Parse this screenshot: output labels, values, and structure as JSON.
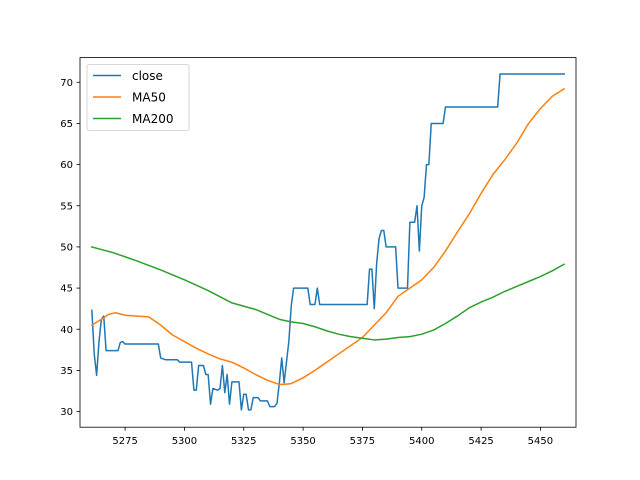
{
  "chart_data": {
    "type": "line",
    "title": "",
    "xlabel": "",
    "ylabel": "",
    "xlim": [
      5256,
      5465
    ],
    "ylim": [
      28.1,
      73.0
    ],
    "xticks": [
      5275,
      5300,
      5325,
      5350,
      5375,
      5400,
      5425,
      5450
    ],
    "yticks": [
      30,
      35,
      40,
      45,
      50,
      55,
      60,
      65,
      70
    ],
    "grid": false,
    "legend_position": "top-left",
    "series": [
      {
        "name": "close",
        "color": "#1f77b4",
        "points": [
          [
            5261,
            42.3
          ],
          [
            5262,
            37.0
          ],
          [
            5263,
            34.4
          ],
          [
            5264,
            38.5
          ],
          [
            5265,
            41.2
          ],
          [
            5266,
            41.6
          ],
          [
            5267,
            37.4
          ],
          [
            5270,
            37.4
          ],
          [
            5272,
            37.4
          ],
          [
            5273,
            38.4
          ],
          [
            5274,
            38.5
          ],
          [
            5275,
            38.2
          ],
          [
            5280,
            38.2
          ],
          [
            5285,
            38.2
          ],
          [
            5289,
            38.2
          ],
          [
            5290,
            36.5
          ],
          [
            5292,
            36.3
          ],
          [
            5297,
            36.3
          ],
          [
            5298,
            36.0
          ],
          [
            5301,
            36.0
          ],
          [
            5303,
            36.0
          ],
          [
            5304,
            32.6
          ],
          [
            5305,
            32.6
          ],
          [
            5306,
            35.6
          ],
          [
            5308,
            35.6
          ],
          [
            5309,
            34.5
          ],
          [
            5310,
            34.5
          ],
          [
            5311,
            30.9
          ],
          [
            5312,
            32.8
          ],
          [
            5314,
            32.6
          ],
          [
            5315,
            32.8
          ],
          [
            5316,
            35.6
          ],
          [
            5317,
            32.3
          ],
          [
            5318,
            34.5
          ],
          [
            5319,
            30.9
          ],
          [
            5320,
            33.6
          ],
          [
            5323,
            33.6
          ],
          [
            5324,
            30.2
          ],
          [
            5325,
            32.1
          ],
          [
            5326,
            32.1
          ],
          [
            5327,
            30.2
          ],
          [
            5328,
            30.2
          ],
          [
            5329,
            31.7
          ],
          [
            5331,
            31.7
          ],
          [
            5332,
            31.3
          ],
          [
            5335,
            31.3
          ],
          [
            5336,
            30.6
          ],
          [
            5338,
            30.6
          ],
          [
            5339,
            31.0
          ],
          [
            5340,
            33.5
          ],
          [
            5341,
            36.5
          ],
          [
            5342,
            33.5
          ],
          [
            5344,
            38.5
          ],
          [
            5345,
            42.8
          ],
          [
            5346,
            45.0
          ],
          [
            5350,
            45.0
          ],
          [
            5352,
            45.0
          ],
          [
            5353,
            43.0
          ],
          [
            5355,
            43.0
          ],
          [
            5356,
            45.0
          ],
          [
            5357,
            43.0
          ],
          [
            5360,
            43.0
          ],
          [
            5365,
            43.0
          ],
          [
            5370,
            43.0
          ],
          [
            5375,
            43.0
          ],
          [
            5377,
            43.0
          ],
          [
            5378,
            47.3
          ],
          [
            5379,
            47.3
          ],
          [
            5380,
            42.5
          ],
          [
            5381,
            48.0
          ],
          [
            5382,
            51.0
          ],
          [
            5383,
            52.0
          ],
          [
            5384,
            52.0
          ],
          [
            5385,
            50.0
          ],
          [
            5389,
            50.0
          ],
          [
            5390,
            45.0
          ],
          [
            5394,
            45.0
          ],
          [
            5395,
            53.0
          ],
          [
            5397,
            53.0
          ],
          [
            5398,
            55.0
          ],
          [
            5399,
            49.5
          ],
          [
            5400,
            55.0
          ],
          [
            5401,
            56.0
          ],
          [
            5402,
            60.0
          ],
          [
            5403,
            60.0
          ],
          [
            5404,
            65.0
          ],
          [
            5409,
            65.0
          ],
          [
            5410,
            67.0
          ],
          [
            5420,
            67.0
          ],
          [
            5431,
            67.0
          ],
          [
            5432,
            67.0
          ],
          [
            5433,
            71.0
          ],
          [
            5445,
            71.0
          ],
          [
            5460,
            71.0
          ]
        ]
      },
      {
        "name": "MA50",
        "color": "#ff7f0e",
        "points": [
          [
            5261,
            40.5
          ],
          [
            5265,
            41.2
          ],
          [
            5268,
            41.8
          ],
          [
            5271,
            42.0
          ],
          [
            5275,
            41.7
          ],
          [
            5280,
            41.6
          ],
          [
            5285,
            41.5
          ],
          [
            5290,
            40.5
          ],
          [
            5295,
            39.3
          ],
          [
            5300,
            38.5
          ],
          [
            5305,
            37.7
          ],
          [
            5310,
            37.0
          ],
          [
            5315,
            36.4
          ],
          [
            5320,
            36.0
          ],
          [
            5325,
            35.3
          ],
          [
            5330,
            34.5
          ],
          [
            5335,
            33.8
          ],
          [
            5340,
            33.3
          ],
          [
            5342,
            33.3
          ],
          [
            5345,
            33.4
          ],
          [
            5350,
            34.1
          ],
          [
            5355,
            35.0
          ],
          [
            5360,
            36.0
          ],
          [
            5365,
            37.0
          ],
          [
            5370,
            38.0
          ],
          [
            5375,
            39.0
          ],
          [
            5380,
            40.5
          ],
          [
            5385,
            42.0
          ],
          [
            5390,
            44.0
          ],
          [
            5395,
            45.0
          ],
          [
            5400,
            46.0
          ],
          [
            5405,
            47.5
          ],
          [
            5410,
            49.5
          ],
          [
            5415,
            51.8
          ],
          [
            5420,
            54.0
          ],
          [
            5425,
            56.5
          ],
          [
            5430,
            58.8
          ],
          [
            5435,
            60.6
          ],
          [
            5440,
            62.6
          ],
          [
            5445,
            65.0
          ],
          [
            5450,
            66.8
          ],
          [
            5455,
            68.3
          ],
          [
            5460,
            69.2
          ]
        ]
      },
      {
        "name": "MA200",
        "color": "#2ca02c",
        "points": [
          [
            5261,
            50.0
          ],
          [
            5270,
            49.3
          ],
          [
            5280,
            48.3
          ],
          [
            5290,
            47.2
          ],
          [
            5300,
            46.0
          ],
          [
            5310,
            44.7
          ],
          [
            5320,
            43.2
          ],
          [
            5330,
            42.4
          ],
          [
            5340,
            41.2
          ],
          [
            5345,
            40.9
          ],
          [
            5350,
            40.7
          ],
          [
            5355,
            40.3
          ],
          [
            5360,
            39.8
          ],
          [
            5365,
            39.4
          ],
          [
            5370,
            39.1
          ],
          [
            5375,
            38.9
          ],
          [
            5380,
            38.7
          ],
          [
            5385,
            38.8
          ],
          [
            5390,
            39.0
          ],
          [
            5395,
            39.1
          ],
          [
            5400,
            39.4
          ],
          [
            5405,
            39.9
          ],
          [
            5410,
            40.7
          ],
          [
            5415,
            41.6
          ],
          [
            5420,
            42.6
          ],
          [
            5425,
            43.3
          ],
          [
            5430,
            43.9
          ],
          [
            5435,
            44.6
          ],
          [
            5440,
            45.2
          ],
          [
            5445,
            45.8
          ],
          [
            5450,
            46.4
          ],
          [
            5455,
            47.1
          ],
          [
            5460,
            47.9
          ]
        ]
      }
    ]
  }
}
